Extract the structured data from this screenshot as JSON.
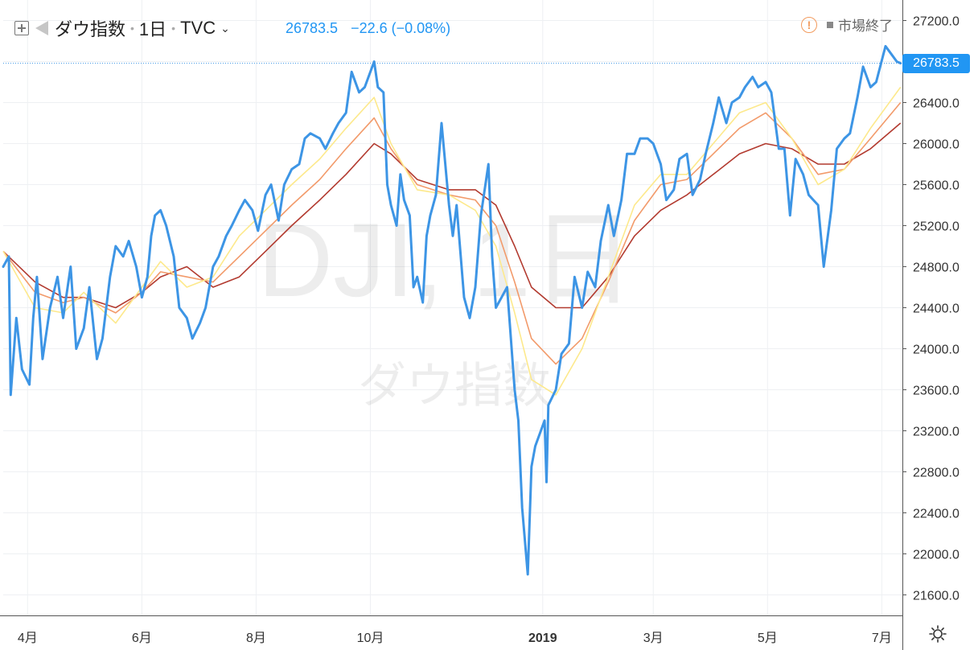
{
  "header": {
    "symbol": "ダウ指数",
    "interval": "1日",
    "exchange": "TVC",
    "last_price": "26783.5",
    "change": "−22.6 (−0.08%)",
    "market_status": "市場終了",
    "price_color": "#2196f3"
  },
  "watermark": {
    "ticker": "DJI, 1日",
    "name": "ダウ指数"
  },
  "price_axis": {
    "labels": [
      "27200.0",
      "26800.0",
      "26400.0",
      "26000.0",
      "25600.0",
      "25200.0",
      "24800.0",
      "24400.0",
      "24000.0",
      "23600.0",
      "23200.0",
      "22800.0",
      "22400.0",
      "22000.0",
      "21600.0"
    ],
    "current_label": "26783.5"
  },
  "time_axis": {
    "labels": [
      "4月",
      "6月",
      "8月",
      "10月",
      "2019",
      "3月",
      "5月",
      "7月"
    ]
  },
  "colors": {
    "price_line": "#3d95e5",
    "grid": "#eef0f3",
    "ma_gradient": [
      "#fde98c",
      "#fbd57e",
      "#f7b775",
      "#f29a6a",
      "#eb7d60",
      "#df6552",
      "#d05244",
      "#b23a2f"
    ]
  },
  "chart_data": {
    "type": "line",
    "title": "",
    "ylim": [
      21400,
      27400
    ],
    "current_value": 26783.5,
    "x_range": [
      "2018-03-19",
      "2019-07-12"
    ],
    "x_ticks": [
      {
        "label": "4月",
        "date": "2018-04-01"
      },
      {
        "label": "6月",
        "date": "2018-06-01"
      },
      {
        "label": "8月",
        "date": "2018-08-01"
      },
      {
        "label": "10月",
        "date": "2018-10-01"
      },
      {
        "label": "2019",
        "date": "2019-01-01"
      },
      {
        "label": "3月",
        "date": "2019-03-01"
      },
      {
        "label": "5月",
        "date": "2019-05-01"
      },
      {
        "label": "7月",
        "date": "2019-07-01"
      }
    ],
    "y_ticks": [
      27200,
      26800,
      26400,
      26000,
      25600,
      25200,
      24800,
      24400,
      24000,
      23600,
      23200,
      22800,
      22400,
      22000,
      21600
    ],
    "series": [
      {
        "values": [
          [
            "2018-03-19",
            24800
          ],
          [
            "2018-03-22",
            24900
          ],
          [
            "2018-03-23",
            23550
          ],
          [
            "2018-03-26",
            24300
          ],
          [
            "2018-03-29",
            23800
          ],
          [
            "2018-04-02",
            23650
          ],
          [
            "2018-04-04",
            24300
          ],
          [
            "2018-04-06",
            24700
          ],
          [
            "2018-04-09",
            23900
          ],
          [
            "2018-04-13",
            24400
          ],
          [
            "2018-04-17",
            24700
          ],
          [
            "2018-04-20",
            24300
          ],
          [
            "2018-04-24",
            24800
          ],
          [
            "2018-04-27",
            24000
          ],
          [
            "2018-05-01",
            24200
          ],
          [
            "2018-05-04",
            24600
          ],
          [
            "2018-05-08",
            23900
          ],
          [
            "2018-05-11",
            24100
          ],
          [
            "2018-05-15",
            24700
          ],
          [
            "2018-05-18",
            25000
          ],
          [
            "2018-05-22",
            24900
          ],
          [
            "2018-05-25",
            25050
          ],
          [
            "2018-05-29",
            24800
          ],
          [
            "2018-06-01",
            24500
          ],
          [
            "2018-06-04",
            24700
          ],
          [
            "2018-06-06",
            25100
          ],
          [
            "2018-06-08",
            25300
          ],
          [
            "2018-06-11",
            25350
          ],
          [
            "2018-06-14",
            25200
          ],
          [
            "2018-06-18",
            24900
          ],
          [
            "2018-06-21",
            24400
          ],
          [
            "2018-06-25",
            24300
          ],
          [
            "2018-06-28",
            24100
          ],
          [
            "2018-07-02",
            24250
          ],
          [
            "2018-07-05",
            24400
          ],
          [
            "2018-07-09",
            24800
          ],
          [
            "2018-07-12",
            24900
          ],
          [
            "2018-07-16",
            25100
          ],
          [
            "2018-07-19",
            25200
          ],
          [
            "2018-07-23",
            25350
          ],
          [
            "2018-07-26",
            25450
          ],
          [
            "2018-07-30",
            25350
          ],
          [
            "2018-08-02",
            25150
          ],
          [
            "2018-08-06",
            25500
          ],
          [
            "2018-08-09",
            25600
          ],
          [
            "2018-08-13",
            25250
          ],
          [
            "2018-08-16",
            25600
          ],
          [
            "2018-08-20",
            25750
          ],
          [
            "2018-08-24",
            25800
          ],
          [
            "2018-08-27",
            26050
          ],
          [
            "2018-08-30",
            26100
          ],
          [
            "2018-09-04",
            26050
          ],
          [
            "2018-09-07",
            25950
          ],
          [
            "2018-09-11",
            26100
          ],
          [
            "2018-09-14",
            26200
          ],
          [
            "2018-09-18",
            26300
          ],
          [
            "2018-09-21",
            26700
          ],
          [
            "2018-09-25",
            26500
          ],
          [
            "2018-09-28",
            26550
          ],
          [
            "2018-10-03",
            26800
          ],
          [
            "2018-10-05",
            26550
          ],
          [
            "2018-10-08",
            26500
          ],
          [
            "2018-10-10",
            25600
          ],
          [
            "2018-10-12",
            25400
          ],
          [
            "2018-10-15",
            25200
          ],
          [
            "2018-10-17",
            25700
          ],
          [
            "2018-10-19",
            25450
          ],
          [
            "2018-10-22",
            25300
          ],
          [
            "2018-10-24",
            24600
          ],
          [
            "2018-10-26",
            24700
          ],
          [
            "2018-10-29",
            24450
          ],
          [
            "2018-10-31",
            25100
          ],
          [
            "2018-11-02",
            25300
          ],
          [
            "2018-11-05",
            25500
          ],
          [
            "2018-11-08",
            26200
          ],
          [
            "2018-11-12",
            25400
          ],
          [
            "2018-11-14",
            25100
          ],
          [
            "2018-11-16",
            25400
          ],
          [
            "2018-11-20",
            24500
          ],
          [
            "2018-11-23",
            24300
          ],
          [
            "2018-11-26",
            24600
          ],
          [
            "2018-11-29",
            25300
          ],
          [
            "2018-12-03",
            25800
          ],
          [
            "2018-12-05",
            24900
          ],
          [
            "2018-12-07",
            24400
          ],
          [
            "2018-12-10",
            24500
          ],
          [
            "2018-12-13",
            24600
          ],
          [
            "2018-12-17",
            23600
          ],
          [
            "2018-12-19",
            23300
          ],
          [
            "2018-12-21",
            22450
          ],
          [
            "2018-12-24",
            21800
          ],
          [
            "2018-12-26",
            22850
          ],
          [
            "2018-12-28",
            23050
          ],
          [
            "2019-01-02",
            23300
          ],
          [
            "2019-01-03",
            22700
          ],
          [
            "2019-01-04",
            23450
          ],
          [
            "2019-01-08",
            23600
          ],
          [
            "2019-01-11",
            23950
          ],
          [
            "2019-01-15",
            24050
          ],
          [
            "2019-01-18",
            24700
          ],
          [
            "2019-01-22",
            24400
          ],
          [
            "2019-01-25",
            24750
          ],
          [
            "2019-01-29",
            24600
          ],
          [
            "2019-02-01",
            25050
          ],
          [
            "2019-02-05",
            25400
          ],
          [
            "2019-02-08",
            25100
          ],
          [
            "2019-02-12",
            25450
          ],
          [
            "2019-02-15",
            25900
          ],
          [
            "2019-02-19",
            25900
          ],
          [
            "2019-02-22",
            26050
          ],
          [
            "2019-02-26",
            26050
          ],
          [
            "2019-03-01",
            26000
          ],
          [
            "2019-03-05",
            25800
          ],
          [
            "2019-03-08",
            25450
          ],
          [
            "2019-03-12",
            25550
          ],
          [
            "2019-03-15",
            25850
          ],
          [
            "2019-03-19",
            25900
          ],
          [
            "2019-03-22",
            25500
          ],
          [
            "2019-03-26",
            25650
          ],
          [
            "2019-03-29",
            25900
          ],
          [
            "2019-04-02",
            26200
          ],
          [
            "2019-04-05",
            26450
          ],
          [
            "2019-04-09",
            26200
          ],
          [
            "2019-04-12",
            26400
          ],
          [
            "2019-04-16",
            26450
          ],
          [
            "2019-04-19",
            26550
          ],
          [
            "2019-04-23",
            26650
          ],
          [
            "2019-04-26",
            26550
          ],
          [
            "2019-04-30",
            26600
          ],
          [
            "2019-05-03",
            26500
          ],
          [
            "2019-05-07",
            25950
          ],
          [
            "2019-05-10",
            25950
          ],
          [
            "2019-05-13",
            25300
          ],
          [
            "2019-05-16",
            25850
          ],
          [
            "2019-05-20",
            25700
          ],
          [
            "2019-05-23",
            25500
          ],
          [
            "2019-05-28",
            25400
          ],
          [
            "2019-05-31",
            24800
          ],
          [
            "2019-06-04",
            25350
          ],
          [
            "2019-06-07",
            25950
          ],
          [
            "2019-06-11",
            26050
          ],
          [
            "2019-06-14",
            26100
          ],
          [
            "2019-06-18",
            26450
          ],
          [
            "2019-06-21",
            26750
          ],
          [
            "2019-06-25",
            26550
          ],
          [
            "2019-06-28",
            26600
          ],
          [
            "2019-07-03",
            26950
          ],
          [
            "2019-07-05",
            26900
          ],
          [
            "2019-07-09",
            26800
          ],
          [
            "2019-07-11",
            26783.5
          ]
        ]
      },
      {
        "values": [
          [
            "2018-03-19",
            24950
          ],
          [
            "2018-04-05",
            24650
          ],
          [
            "2018-04-20",
            24500
          ],
          [
            "2018-05-01",
            24500
          ],
          [
            "2018-05-18",
            24400
          ],
          [
            "2018-06-01",
            24550
          ],
          [
            "2018-06-11",
            24700
          ],
          [
            "2018-06-25",
            24800
          ],
          [
            "2018-07-09",
            24600
          ],
          [
            "2018-07-23",
            24700
          ],
          [
            "2018-08-06",
            24950
          ],
          [
            "2018-08-20",
            25200
          ],
          [
            "2018-09-04",
            25450
          ],
          [
            "2018-09-18",
            25700
          ],
          [
            "2018-10-03",
            26000
          ],
          [
            "2018-10-12",
            25900
          ],
          [
            "2018-10-26",
            25650
          ],
          [
            "2018-11-12",
            25550
          ],
          [
            "2018-11-26",
            25550
          ],
          [
            "2018-12-07",
            25400
          ],
          [
            "2018-12-17",
            25000
          ],
          [
            "2018-12-26",
            24600
          ],
          [
            "2019-01-08",
            24400
          ],
          [
            "2019-01-22",
            24400
          ],
          [
            "2019-02-05",
            24700
          ],
          [
            "2019-02-19",
            25100
          ],
          [
            "2019-03-05",
            25350
          ],
          [
            "2019-03-19",
            25500
          ],
          [
            "2019-04-02",
            25700
          ],
          [
            "2019-04-16",
            25900
          ],
          [
            "2019-04-30",
            26000
          ],
          [
            "2019-05-14",
            25950
          ],
          [
            "2019-05-28",
            25800
          ],
          [
            "2019-06-11",
            25800
          ],
          [
            "2019-06-25",
            25950
          ],
          [
            "2019-07-11",
            26200
          ]
        ]
      },
      {
        "values": [
          [
            "2018-03-19",
            24950
          ],
          [
            "2018-04-05",
            24550
          ],
          [
            "2018-04-20",
            24450
          ],
          [
            "2018-05-01",
            24500
          ],
          [
            "2018-05-18",
            24350
          ],
          [
            "2018-06-01",
            24550
          ],
          [
            "2018-06-11",
            24750
          ],
          [
            "2018-06-25",
            24700
          ],
          [
            "2018-07-09",
            24650
          ],
          [
            "2018-07-23",
            24900
          ],
          [
            "2018-08-06",
            25150
          ],
          [
            "2018-08-20",
            25400
          ],
          [
            "2018-09-04",
            25650
          ],
          [
            "2018-09-18",
            25950
          ],
          [
            "2018-10-03",
            26250
          ],
          [
            "2018-10-12",
            25950
          ],
          [
            "2018-10-26",
            25600
          ],
          [
            "2018-11-12",
            25500
          ],
          [
            "2018-11-26",
            25450
          ],
          [
            "2018-12-07",
            25200
          ],
          [
            "2018-12-17",
            24650
          ],
          [
            "2018-12-26",
            24100
          ],
          [
            "2019-01-08",
            23850
          ],
          [
            "2019-01-22",
            24100
          ],
          [
            "2019-02-05",
            24650
          ],
          [
            "2019-02-19",
            25250
          ],
          [
            "2019-03-05",
            25600
          ],
          [
            "2019-03-19",
            25650
          ],
          [
            "2019-04-02",
            25900
          ],
          [
            "2019-04-16",
            26150
          ],
          [
            "2019-04-30",
            26300
          ],
          [
            "2019-05-14",
            26050
          ],
          [
            "2019-05-28",
            25700
          ],
          [
            "2019-06-11",
            25750
          ],
          [
            "2019-06-25",
            26050
          ],
          [
            "2019-07-11",
            26400
          ]
        ]
      },
      {
        "values": [
          [
            "2018-03-19",
            24950
          ],
          [
            "2018-04-05",
            24400
          ],
          [
            "2018-04-20",
            24350
          ],
          [
            "2018-05-01",
            24550
          ],
          [
            "2018-05-18",
            24250
          ],
          [
            "2018-06-01",
            24600
          ],
          [
            "2018-06-11",
            24850
          ],
          [
            "2018-06-25",
            24600
          ],
          [
            "2018-07-09",
            24700
          ],
          [
            "2018-07-23",
            25100
          ],
          [
            "2018-08-06",
            25350
          ],
          [
            "2018-08-20",
            25600
          ],
          [
            "2018-09-04",
            25850
          ],
          [
            "2018-09-18",
            26150
          ],
          [
            "2018-10-03",
            26450
          ],
          [
            "2018-10-12",
            26000
          ],
          [
            "2018-10-26",
            25550
          ],
          [
            "2018-11-12",
            25500
          ],
          [
            "2018-11-26",
            25350
          ],
          [
            "2018-12-07",
            25000
          ],
          [
            "2018-12-17",
            24350
          ],
          [
            "2018-12-26",
            23700
          ],
          [
            "2019-01-08",
            23550
          ],
          [
            "2019-01-22",
            24000
          ],
          [
            "2019-02-05",
            24700
          ],
          [
            "2019-02-19",
            25400
          ],
          [
            "2019-03-05",
            25700
          ],
          [
            "2019-03-19",
            25700
          ],
          [
            "2019-04-02",
            26000
          ],
          [
            "2019-04-16",
            26300
          ],
          [
            "2019-04-30",
            26400
          ],
          [
            "2019-05-14",
            26050
          ],
          [
            "2019-05-28",
            25600
          ],
          [
            "2019-06-11",
            25750
          ],
          [
            "2019-06-25",
            26150
          ],
          [
            "2019-07-11",
            26550
          ]
        ]
      }
    ]
  }
}
